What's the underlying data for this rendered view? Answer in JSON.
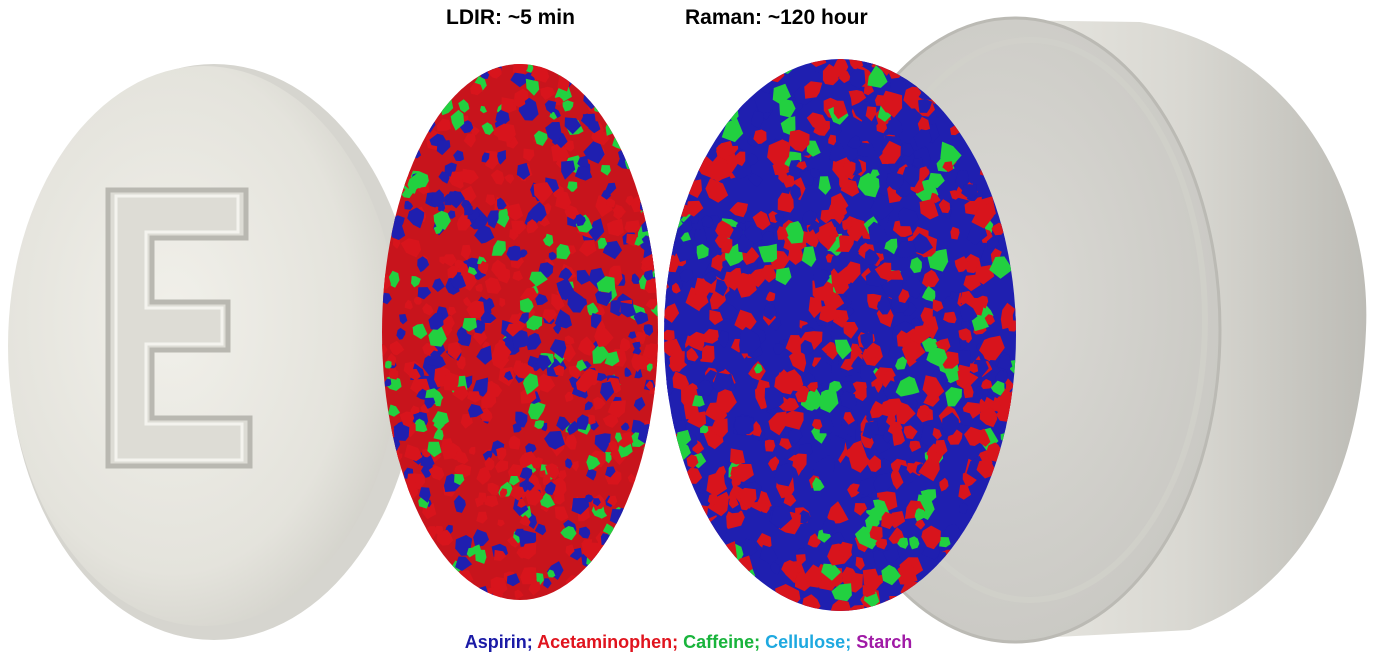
{
  "titles": {
    "ldir": "LDIR: ~5 min",
    "raman": "Raman: ~120 hour"
  },
  "tablet": {
    "embossed_letter": "E"
  },
  "legend": [
    {
      "label": "Aspirin",
      "color": "#1a1aa6"
    },
    {
      "label": "Acetaminophen",
      "color": "#e0141e"
    },
    {
      "label": "Caffeine",
      "color": "#19b43c"
    },
    {
      "label": "Cellulose",
      "color": "#1ea9e0"
    },
    {
      "label": "Starch",
      "color": "#a01aa6"
    }
  ],
  "map_colors": {
    "aspirin": "#1f1fb0",
    "acetaminophen": "#d8141c",
    "caffeine": "#22d040"
  }
}
